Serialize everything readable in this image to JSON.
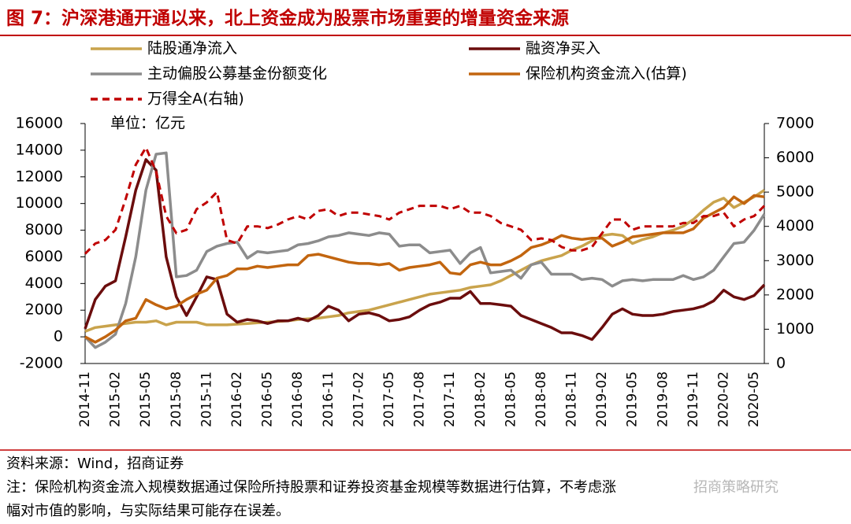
{
  "chart_data": {
    "type": "line",
    "title": "图 7：沪深港通开通以来，北上资金成为股票市场重要的增量资金来源",
    "unit_note": "单位：亿元",
    "source": "资料来源：Wind，招商证券",
    "note": "注：保险机构资金流入规模数据通过保险所持股票和证券投资基金规模等数据进行估算，不考虑涨",
    "note2": "幅对市值的影响，与实际结果可能存在误差。",
    "watermark": "招商策略研究",
    "categories": [
      "2014-11",
      null,
      null,
      "2015-02",
      null,
      null,
      "2015-05",
      null,
      null,
      "2015-08",
      null,
      null,
      "2015-11",
      null,
      null,
      "2016-02",
      null,
      null,
      "2016-05",
      null,
      null,
      "2016-08",
      null,
      null,
      "2016-11",
      null,
      null,
      "2017-02",
      null,
      null,
      "2017-05",
      null,
      null,
      "2017-08",
      null,
      null,
      "2017-11",
      null,
      null,
      "2018-02",
      null,
      null,
      "2018-05",
      null,
      null,
      "2018-08",
      null,
      null,
      "2018-11",
      null,
      null,
      "2019-02",
      null,
      null,
      "2019-05",
      null,
      null,
      "2019-08",
      null,
      null,
      "2019-11",
      null,
      null,
      "2020-02",
      null,
      null,
      "2020-05",
      null
    ],
    "ylim": [
      -2000,
      16000
    ],
    "yticks": [
      -2000,
      0,
      2000,
      4000,
      6000,
      8000,
      10000,
      12000,
      14000,
      16000
    ],
    "y2lim": [
      0,
      7000
    ],
    "y2ticks": [
      0,
      1000,
      2000,
      3000,
      4000,
      5000,
      6000,
      7000
    ],
    "series": [
      {
        "name": "陆股通净流入",
        "color": "#c9a34c",
        "values": [
          400,
          700,
          800,
          900,
          1000,
          1100,
          1100,
          1200,
          900,
          1100,
          1100,
          1100,
          900,
          900,
          900,
          950,
          1000,
          1050,
          1100,
          1150,
          1200,
          1300,
          1350,
          1400,
          1500,
          1600,
          1800,
          1900,
          2000,
          2200,
          2400,
          2600,
          2800,
          3000,
          3200,
          3300,
          3400,
          3500,
          3700,
          3800,
          3900,
          4200,
          4600,
          5000,
          5400,
          5700,
          5900,
          6100,
          6500,
          6800,
          7200,
          7600,
          7700,
          7600,
          7000,
          7300,
          7500,
          7800,
          8000,
          8300,
          8800,
          9500,
          10100,
          10400,
          9700,
          10100,
          10500,
          11000
        ]
      },
      {
        "name": "融资净买入",
        "color": "#6b0d0d",
        "values": [
          600,
          2800,
          3800,
          4200,
          7500,
          11000,
          13300,
          12500,
          6000,
          3000,
          1600,
          3000,
          4500,
          4300,
          1700,
          1100,
          1300,
          1200,
          1000,
          1200,
          1200,
          1400,
          1200,
          1600,
          2300,
          2000,
          1200,
          1700,
          1800,
          1600,
          1200,
          1300,
          1500,
          2000,
          2400,
          2600,
          2900,
          2900,
          3400,
          2500,
          2500,
          2400,
          2300,
          1600,
          1300,
          1000,
          700,
          300,
          300,
          100,
          -200,
          700,
          1700,
          2100,
          1700,
          1600,
          1600,
          1700,
          1900,
          2000,
          2100,
          2300,
          2700,
          3500,
          3000,
          2800,
          3100,
          3900
        ]
      },
      {
        "name": "主动偏股公募基金份额变化",
        "color": "#8c8c8c",
        "values": [
          0,
          -800,
          -400,
          200,
          2500,
          6000,
          11000,
          13700,
          13800,
          4500,
          4600,
          5000,
          6400,
          6800,
          7000,
          7100,
          5900,
          6400,
          6300,
          6400,
          6500,
          6900,
          7000,
          7200,
          7500,
          7600,
          7800,
          7700,
          7600,
          7800,
          7700,
          6800,
          6900,
          6900,
          6300,
          6400,
          6500,
          5500,
          6300,
          6700,
          4800,
          4900,
          5000,
          4400,
          5400,
          5600,
          4700,
          4700,
          4700,
          4300,
          4400,
          4300,
          3800,
          4200,
          4300,
          4200,
          4300,
          4300,
          4300,
          4600,
          4300,
          4500,
          5000,
          6000,
          7000,
          7100,
          8000,
          9200
        ]
      },
      {
        "name": "保险机构资金流入(估算)",
        "color": "#c2650f",
        "values": [
          0,
          -400,
          0,
          500,
          1200,
          1400,
          2800,
          2400,
          2100,
          2300,
          2800,
          3200,
          3500,
          4400,
          4600,
          5100,
          5100,
          5300,
          5200,
          5300,
          5400,
          5400,
          6100,
          6200,
          6000,
          5800,
          5600,
          5500,
          5500,
          5400,
          5500,
          5000,
          5200,
          5300,
          5400,
          5600,
          4800,
          4700,
          5400,
          5600,
          5400,
          5400,
          5700,
          6100,
          6700,
          6900,
          7200,
          7600,
          7400,
          7300,
          7400,
          7400,
          6800,
          7100,
          7500,
          7600,
          7700,
          7800,
          7800,
          7800,
          8100,
          8900,
          9300,
          9700,
          10500,
          10000,
          10600,
          10500
        ]
      },
      {
        "name": "万得全A(右轴)",
        "color": "#c00000",
        "dashed": true,
        "axis": "y2",
        "values": [
          3200,
          3500,
          3600,
          3900,
          4800,
          5800,
          6300,
          5600,
          4300,
          3800,
          3900,
          4500,
          4700,
          5000,
          3600,
          3500,
          4000,
          4000,
          3950,
          4050,
          4200,
          4300,
          4200,
          4450,
          4500,
          4300,
          4400,
          4400,
          4350,
          4300,
          4200,
          4400,
          4500,
          4600,
          4600,
          4600,
          4500,
          4600,
          4400,
          4400,
          4300,
          4100,
          4000,
          3900,
          3600,
          3650,
          3600,
          3400,
          3300,
          3300,
          3400,
          3800,
          4200,
          4200,
          3900,
          4000,
          4000,
          4000,
          4000,
          4100,
          4100,
          4300,
          4300,
          4400,
          4000,
          4200,
          4300,
          4600
        ]
      }
    ]
  }
}
